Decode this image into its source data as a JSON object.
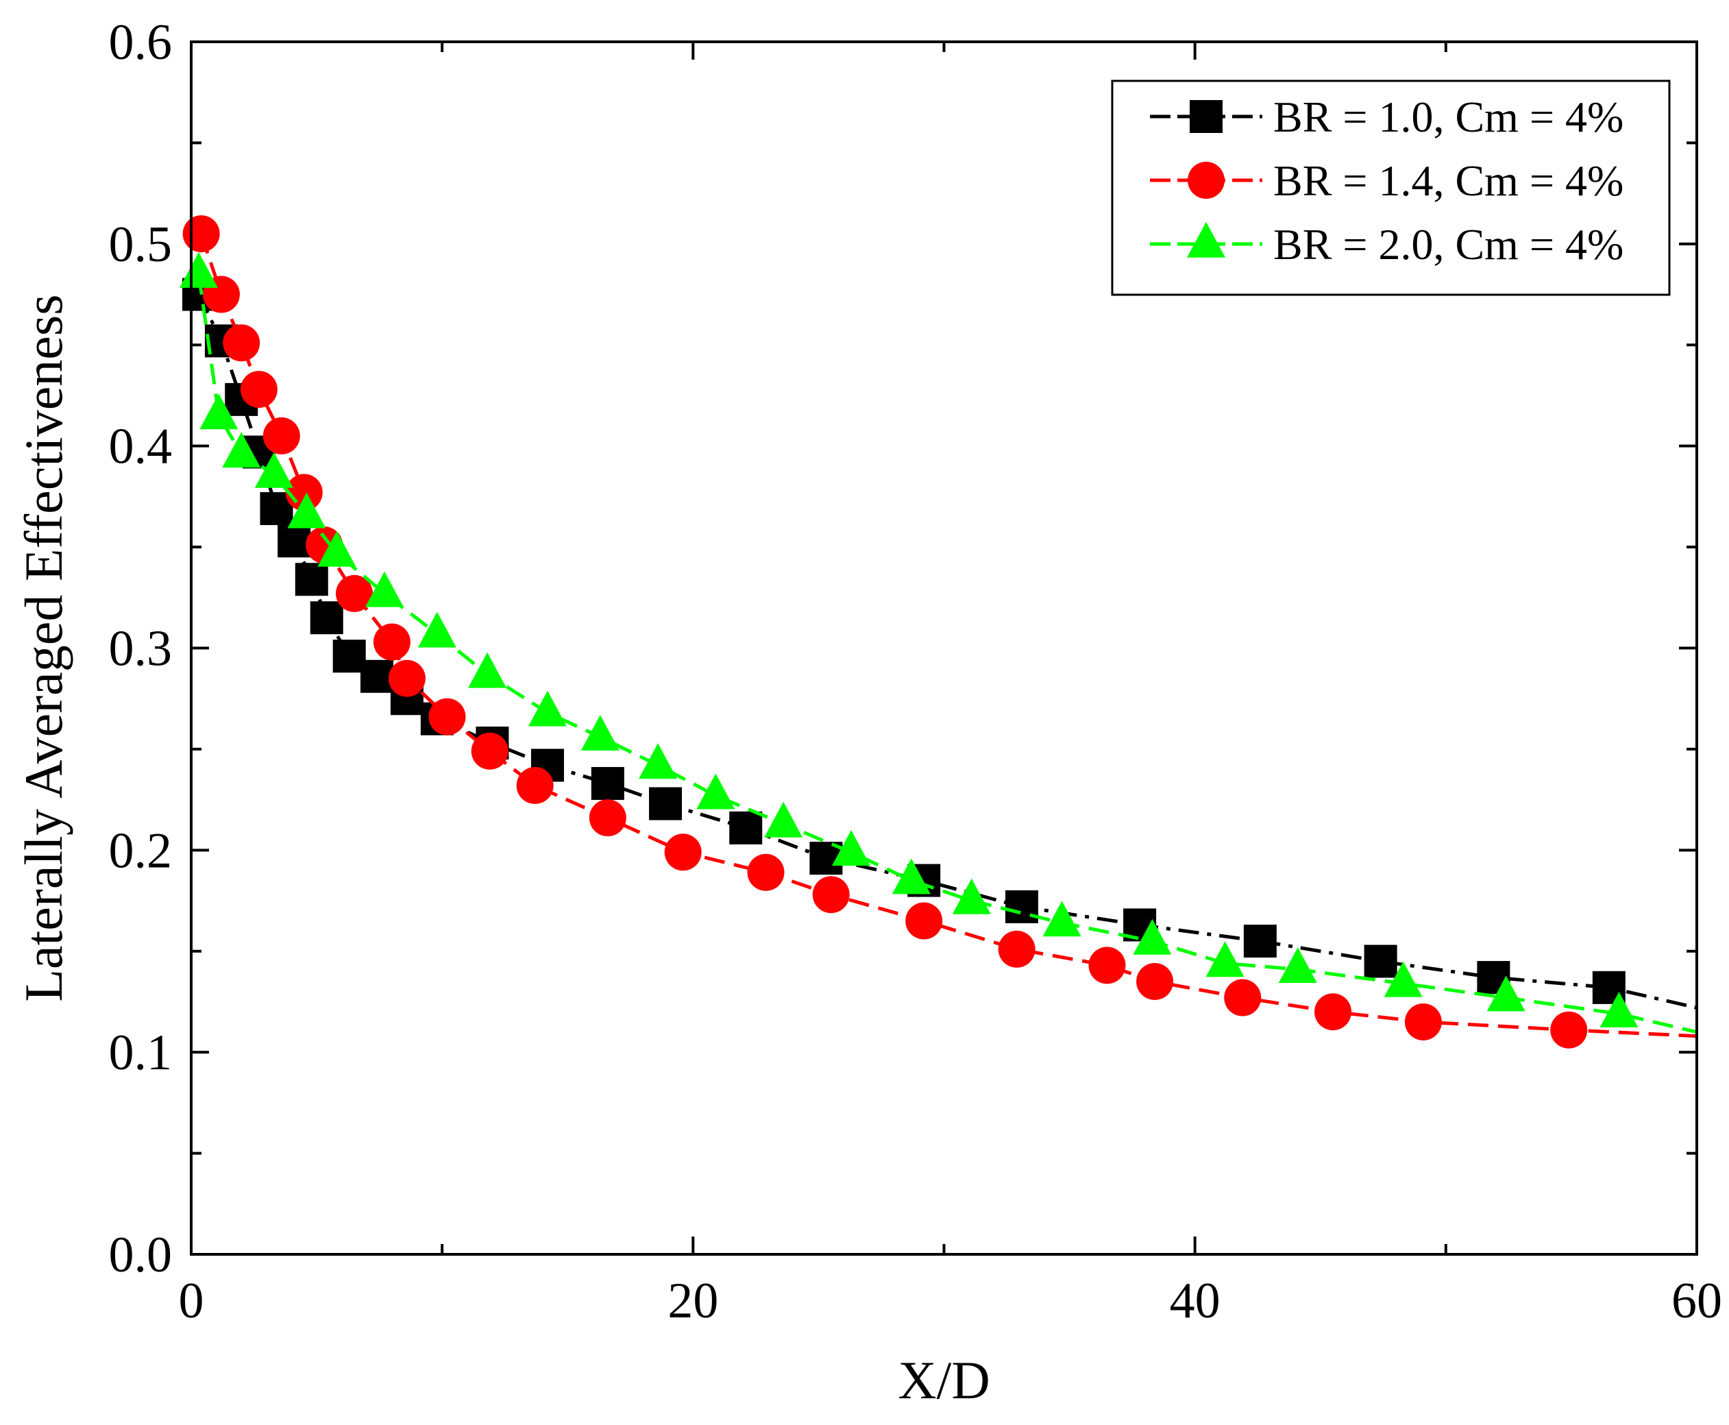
{
  "chart_data": {
    "type": "line",
    "title": "",
    "xlabel": "X/D",
    "ylabel": "Laterally Averaged Effectiveness",
    "xlim": [
      0,
      60
    ],
    "ylim": [
      0.0,
      0.6
    ],
    "xticks": [
      "0",
      "20",
      "40",
      "60"
    ],
    "yticks": [
      "0.0",
      "0.1",
      "0.2",
      "0.3",
      "0.4",
      "0.5",
      "0.6"
    ],
    "grid": false,
    "legend_position": "top-right",
    "series": [
      {
        "name": "BR = 1.0, Cm = 4%",
        "color": "#000000",
        "marker": "square",
        "line_style": "dash-dot",
        "x": [
          0.3,
          1.2,
          2.0,
          2.7,
          3.4,
          4.1,
          4.8,
          5.4,
          6.3,
          7.4,
          8.6,
          9.8,
          12.0,
          14.2,
          16.6,
          18.9,
          22.1,
          25.3,
          29.2,
          33.1,
          37.8,
          42.6,
          47.4,
          51.9,
          56.5,
          60.0
        ],
        "y": [
          0.475,
          0.452,
          0.423,
          0.397,
          0.369,
          0.353,
          0.334,
          0.315,
          0.296,
          0.286,
          0.275,
          0.265,
          0.253,
          0.242,
          0.233,
          0.223,
          0.211,
          0.196,
          0.185,
          0.172,
          0.163,
          0.155,
          0.145,
          0.137,
          0.132,
          0.122
        ]
      },
      {
        "name": "BR = 1.4, Cm = 4%",
        "color": "#ff0000",
        "marker": "circle",
        "line_style": "dash",
        "x": [
          0.4,
          1.2,
          2.0,
          2.7,
          3.6,
          4.5,
          5.3,
          6.5,
          8.0,
          8.6,
          10.2,
          11.9,
          13.7,
          16.6,
          19.6,
          22.9,
          25.5,
          29.2,
          32.9,
          36.5,
          38.4,
          41.9,
          45.5,
          49.1,
          54.9,
          60.0
        ],
        "y": [
          0.505,
          0.475,
          0.451,
          0.428,
          0.405,
          0.377,
          0.351,
          0.327,
          0.303,
          0.285,
          0.266,
          0.249,
          0.232,
          0.216,
          0.199,
          0.189,
          0.178,
          0.165,
          0.151,
          0.143,
          0.135,
          0.127,
          0.12,
          0.115,
          0.111,
          0.108
        ]
      },
      {
        "name": "BR = 2.0, Cm = 4%",
        "color": "#00ff00",
        "marker": "triangle",
        "line_style": "dash",
        "x": [
          0.3,
          1.1,
          2.0,
          3.3,
          4.6,
          5.8,
          7.7,
          9.8,
          11.8,
          14.2,
          16.3,
          18.6,
          20.9,
          23.6,
          26.3,
          28.7,
          31.1,
          34.7,
          38.3,
          41.2,
          44.1,
          48.3,
          52.4,
          56.9,
          60.0
        ],
        "y": [
          0.485,
          0.415,
          0.396,
          0.386,
          0.366,
          0.347,
          0.327,
          0.307,
          0.287,
          0.268,
          0.256,
          0.242,
          0.227,
          0.213,
          0.199,
          0.185,
          0.175,
          0.164,
          0.155,
          0.144,
          0.141,
          0.134,
          0.127,
          0.119,
          0.11
        ]
      }
    ]
  }
}
